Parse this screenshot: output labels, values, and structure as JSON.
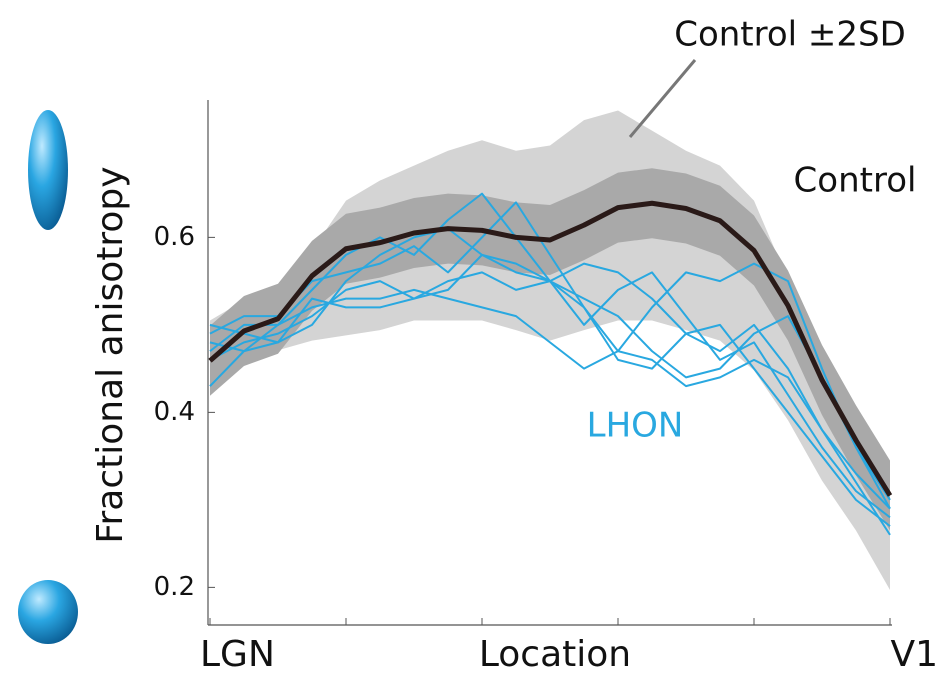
{
  "chart_data": {
    "type": "line",
    "x_label": "Location",
    "y_label": "Fractional anisotropy",
    "categories": [
      "LGN",
      null,
      null,
      null,
      null,
      null,
      null,
      null,
      null,
      null,
      null,
      null,
      null,
      null,
      null,
      null,
      null,
      null,
      null,
      null,
      "V1"
    ],
    "ylim": [
      0.157,
      0.757
    ],
    "yticks": [
      0.2,
      0.4,
      0.6
    ],
    "bands": [
      {
        "name": "Control ±2SD",
        "color": "#d4d4d4",
        "upper": [
          0.505,
          0.528,
          0.539,
          0.585,
          0.642,
          0.665,
          0.682,
          0.699,
          0.711,
          0.699,
          0.705,
          0.734,
          0.745,
          0.722,
          0.699,
          0.682,
          0.642,
          0.551,
          0.459,
          0.39,
          0.333
        ],
        "lower": [
          0.425,
          0.459,
          0.471,
          0.482,
          0.488,
          0.494,
          0.505,
          0.505,
          0.505,
          0.494,
          0.482,
          0.494,
          0.505,
          0.505,
          0.494,
          0.482,
          0.448,
          0.391,
          0.322,
          0.265,
          0.197
        ]
      },
      {
        "color": "#a9a9a9",
        "upper": [
          0.499,
          0.533,
          0.547,
          0.596,
          0.627,
          0.634,
          0.645,
          0.65,
          0.648,
          0.64,
          0.637,
          0.654,
          0.674,
          0.679,
          0.673,
          0.659,
          0.625,
          0.562,
          0.477,
          0.408,
          0.345
        ],
        "lower": [
          0.419,
          0.453,
          0.467,
          0.516,
          0.547,
          0.554,
          0.565,
          0.57,
          0.568,
          0.56,
          0.557,
          0.574,
          0.594,
          0.599,
          0.593,
          0.579,
          0.545,
          0.482,
          0.397,
          0.328,
          0.265
        ]
      }
    ],
    "lhon": {
      "name": "LHON",
      "color": "#29a8e0",
      "lines": [
        [
          0.47,
          0.5,
          0.5,
          0.54,
          0.58,
          0.6,
          0.58,
          0.62,
          0.65,
          0.6,
          0.55,
          0.57,
          0.56,
          0.53,
          0.49,
          0.47,
          0.5,
          0.45,
          0.38,
          0.33,
          0.29
        ],
        [
          0.49,
          0.51,
          0.51,
          0.55,
          0.56,
          0.57,
          0.59,
          0.56,
          0.6,
          0.64,
          0.58,
          0.52,
          0.47,
          0.52,
          0.56,
          0.55,
          0.57,
          0.55,
          0.45,
          0.36,
          0.3
        ],
        [
          0.46,
          0.48,
          0.49,
          0.51,
          0.54,
          0.55,
          0.53,
          0.54,
          0.58,
          0.57,
          0.55,
          0.5,
          0.54,
          0.56,
          0.51,
          0.46,
          0.48,
          0.42,
          0.36,
          0.31,
          0.28
        ],
        [
          0.43,
          0.47,
          0.48,
          0.53,
          0.52,
          0.52,
          0.53,
          0.55,
          0.56,
          0.54,
          0.55,
          0.52,
          0.46,
          0.45,
          0.49,
          0.5,
          0.45,
          0.4,
          0.35,
          0.3,
          0.27
        ],
        [
          0.5,
          0.49,
          0.48,
          0.5,
          0.55,
          0.58,
          0.6,
          0.61,
          0.58,
          0.56,
          0.55,
          0.53,
          0.51,
          0.47,
          0.44,
          0.45,
          0.49,
          0.51,
          0.44,
          0.36,
          0.29
        ],
        [
          0.48,
          0.47,
          0.5,
          0.52,
          0.53,
          0.53,
          0.54,
          0.53,
          0.52,
          0.51,
          0.48,
          0.45,
          0.47,
          0.46,
          0.43,
          0.44,
          0.46,
          0.44,
          0.38,
          0.32,
          0.26
        ]
      ]
    },
    "series": [
      {
        "name": "Control",
        "color": "#2a1a18",
        "values": [
          0.459,
          0.493,
          0.507,
          0.556,
          0.587,
          0.594,
          0.605,
          0.61,
          0.608,
          0.6,
          0.597,
          0.614,
          0.634,
          0.639,
          0.633,
          0.619,
          0.585,
          0.522,
          0.437,
          0.368,
          0.305
        ]
      }
    ]
  }
}
